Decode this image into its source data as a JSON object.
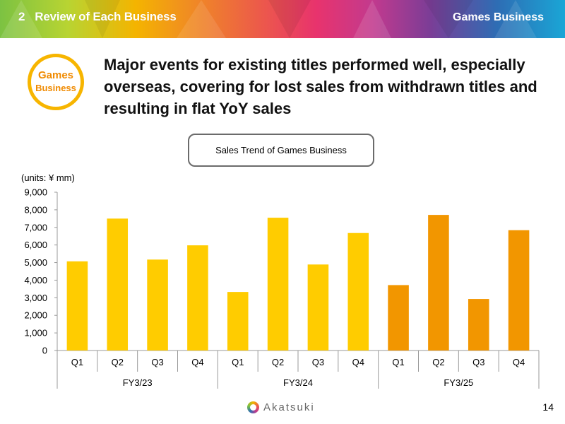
{
  "header": {
    "section_number": "2",
    "section_title": "Review of Each Business",
    "right_title": "Games Business"
  },
  "badge": {
    "line1": "Games",
    "line2": "Business"
  },
  "headline": "Major events for existing titles performed well, especially overseas, covering for lost sales from withdrawn titles and resulting in flat YoY sales",
  "colors": {
    "fy23": "#ffcc00",
    "fy24": "#ffcc00",
    "fy25": "#f29600",
    "badge_ring": "#f7b500",
    "badge_text": "#f08a00"
  },
  "chart_data": {
    "type": "bar",
    "title": "Sales Trend of Games Business",
    "units": "(units: ¥ mm)",
    "ylim": [
      0,
      9000
    ],
    "yticks": [
      "0",
      "1,000",
      "2,000",
      "3,000",
      "4,000",
      "5,000",
      "6,000",
      "7,000",
      "8,000",
      "9,000"
    ],
    "ytick_values": [
      0,
      1000,
      2000,
      3000,
      4000,
      5000,
      6000,
      7000,
      8000,
      9000
    ],
    "groups": [
      {
        "name": "FY3/23",
        "categories": [
          "Q1",
          "Q2",
          "Q3",
          "Q4"
        ],
        "values": [
          5070,
          7500,
          5170,
          5980
        ],
        "color_key": "fy23"
      },
      {
        "name": "FY3/24",
        "categories": [
          "Q1",
          "Q2",
          "Q3",
          "Q4"
        ],
        "values": [
          3330,
          7550,
          4890,
          6680
        ],
        "color_key": "fy24"
      },
      {
        "name": "FY3/25",
        "categories": [
          "Q1",
          "Q2",
          "Q3",
          "Q4"
        ],
        "values": [
          3720,
          7710,
          2930,
          6840
        ],
        "color_key": "fy25"
      }
    ]
  },
  "footer": {
    "logo_text": "Akatsuki",
    "page_number": "14"
  }
}
